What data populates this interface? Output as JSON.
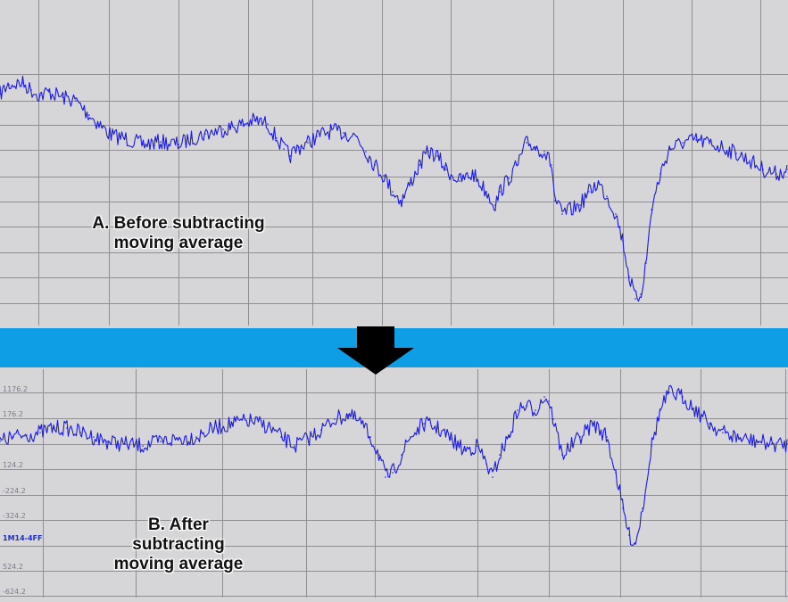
{
  "colors": {
    "background": "#d6d6d9",
    "grid": "#8f8f93",
    "trace": "#1a1ae0",
    "separator_band": "#0d9ee6",
    "arrow": "#000000"
  },
  "captions": {
    "top": [
      "A. Before subtracting",
      "moving average"
    ],
    "bottom": [
      "B. After",
      "subtracting",
      "moving average"
    ]
  },
  "lower_axis_labels": [
    "1176.2",
    "176.2",
    "124.2",
    "-224.2",
    "-324.2",
    "1M14-4FF",
    "524.2",
    "-624.2"
  ],
  "arrow_icon": "down-arrow-icon",
  "chart_data": [
    {
      "type": "line",
      "title": "A. Before subtracting moving average",
      "xlabel": "",
      "ylabel": "",
      "grid": true,
      "noise": 9,
      "x_range": [
        0,
        883
      ],
      "y_range": [
        0,
        365
      ],
      "series": [
        {
          "values_x": [
            0,
            10,
            25,
            35,
            45,
            55,
            70,
            85,
            100,
            115,
            125,
            140,
            160,
            180,
            200,
            215,
            230,
            250,
            270,
            285,
            300,
            310,
            318,
            325,
            335,
            345,
            355,
            370,
            385,
            400,
            410,
            420,
            430,
            440,
            450,
            460,
            470,
            480,
            490,
            500,
            515,
            530,
            545,
            555,
            560,
            570,
            580,
            590,
            600,
            610,
            618,
            622,
            630,
            640,
            650,
            660,
            670,
            680,
            690,
            698,
            705,
            712,
            718,
            724,
            730,
            740,
            750,
            765,
            780,
            795,
            810,
            825,
            840,
            855,
            870,
            883
          ],
          "values_y": [
            260,
            270,
            272,
            264,
            258,
            262,
            256,
            252,
            236,
            222,
            213,
            210,
            203,
            206,
            203,
            210,
            215,
            220,
            225,
            230,
            226,
            210,
            198,
            190,
            200,
            205,
            212,
            218,
            216,
            212,
            195,
            180,
            168,
            150,
            140,
            160,
            180,
            195,
            190,
            175,
            162,
            170,
            150,
            135,
            150,
            165,
            180,
            205,
            200,
            195,
            180,
            140,
            125,
            130,
            135,
            150,
            160,
            145,
            125,
            95,
            55,
            30,
            35,
            70,
            130,
            170,
            198,
            205,
            208,
            204,
            200,
            193,
            185,
            175,
            170,
            175
          ]
        }
      ]
    },
    {
      "type": "line",
      "title": "B. After subtracting moving average",
      "xlabel": "",
      "ylabel": "",
      "grid": true,
      "noise": 9,
      "x_range": [
        0,
        883
      ],
      "y_range": [
        0,
        256
      ],
      "series": [
        {
          "values_x": [
            0,
            15,
            30,
            45,
            60,
            75,
            90,
            105,
            120,
            140,
            160,
            180,
            200,
            220,
            240,
            260,
            280,
            300,
            315,
            330,
            345,
            360,
            375,
            390,
            405,
            415,
            425,
            432,
            440,
            450,
            460,
            475,
            490,
            505,
            520,
            535,
            545,
            552,
            560,
            570,
            580,
            590,
            600,
            610,
            615,
            620,
            630,
            640,
            650,
            665,
            680,
            690,
            698,
            705,
            712,
            720,
            730,
            740,
            750,
            765,
            780,
            795,
            810,
            830,
            850,
            865,
            883
          ],
          "values_y": [
            175,
            180,
            182,
            185,
            190,
            190,
            185,
            180,
            175,
            172,
            170,
            175,
            178,
            180,
            190,
            195,
            198,
            192,
            180,
            170,
            178,
            188,
            200,
            205,
            195,
            180,
            160,
            135,
            140,
            160,
            180,
            195,
            190,
            178,
            165,
            170,
            150,
            135,
            160,
            180,
            210,
            215,
            210,
            225,
            220,
            200,
            160,
            170,
            180,
            195,
            180,
            140,
            100,
            70,
            60,
            100,
            170,
            210,
            230,
            225,
            210,
            195,
            185,
            178,
            175,
            172,
            172
          ]
        }
      ]
    }
  ]
}
